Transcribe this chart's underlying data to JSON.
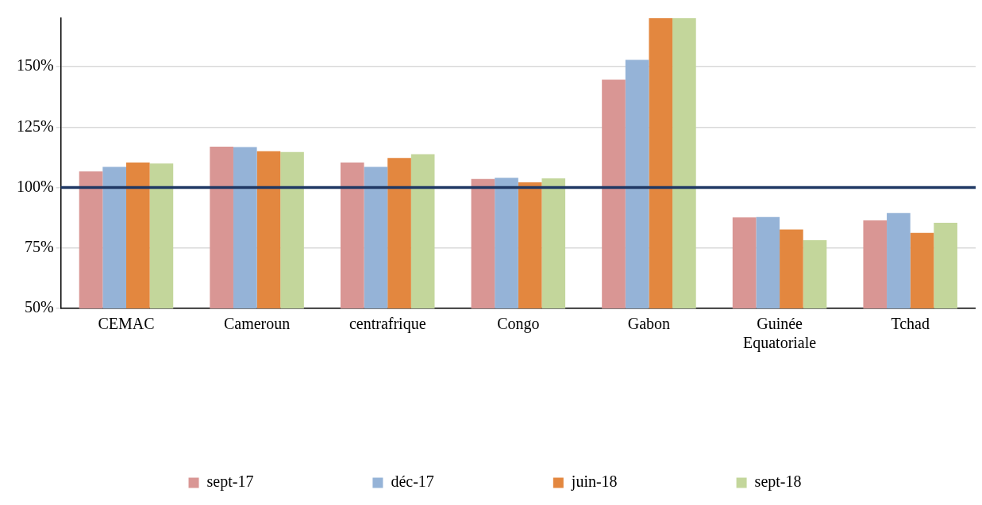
{
  "chart_data": {
    "type": "bar",
    "categories": [
      "CEMAC",
      "Cameroun",
      "centrafrique",
      "Congo",
      "Gabon",
      "Guinée Equatoriale",
      "Tchad"
    ],
    "series": [
      {
        "name": "sept-17",
        "color": "#d99694",
        "values": [
          106.6,
          116.9,
          110.3,
          103.5,
          144.6,
          87.6,
          86.4
        ]
      },
      {
        "name": "déc-17",
        "color": "#95b3d7",
        "values": [
          108.5,
          116.7,
          108.5,
          104.0,
          152.8,
          87.8,
          89.4
        ]
      },
      {
        "name": "juin-18",
        "color": "#e3873f",
        "values": [
          110.3,
          115.0,
          112.2,
          102.1,
          170,
          82.6,
          81.2
        ]
      },
      {
        "name": "sept-18",
        "color": "#c3d69b",
        "values": [
          109.9,
          114.7,
          113.8,
          103.8,
          170,
          78.2,
          85.4
        ]
      }
    ],
    "ylim": [
      50,
      170
    ],
    "yticks": [
      {
        "value": 50,
        "label": "50%"
      },
      {
        "value": 75,
        "label": "75%"
      },
      {
        "value": 100,
        "label": "100%"
      },
      {
        "value": 125,
        "label": "125%"
      },
      {
        "value": 150,
        "label": "150%"
      }
    ],
    "ref_lines": [
      {
        "axis": "y",
        "value": 100,
        "color": "#1f3864"
      }
    ],
    "grid": "y",
    "legend": "bottom"
  }
}
